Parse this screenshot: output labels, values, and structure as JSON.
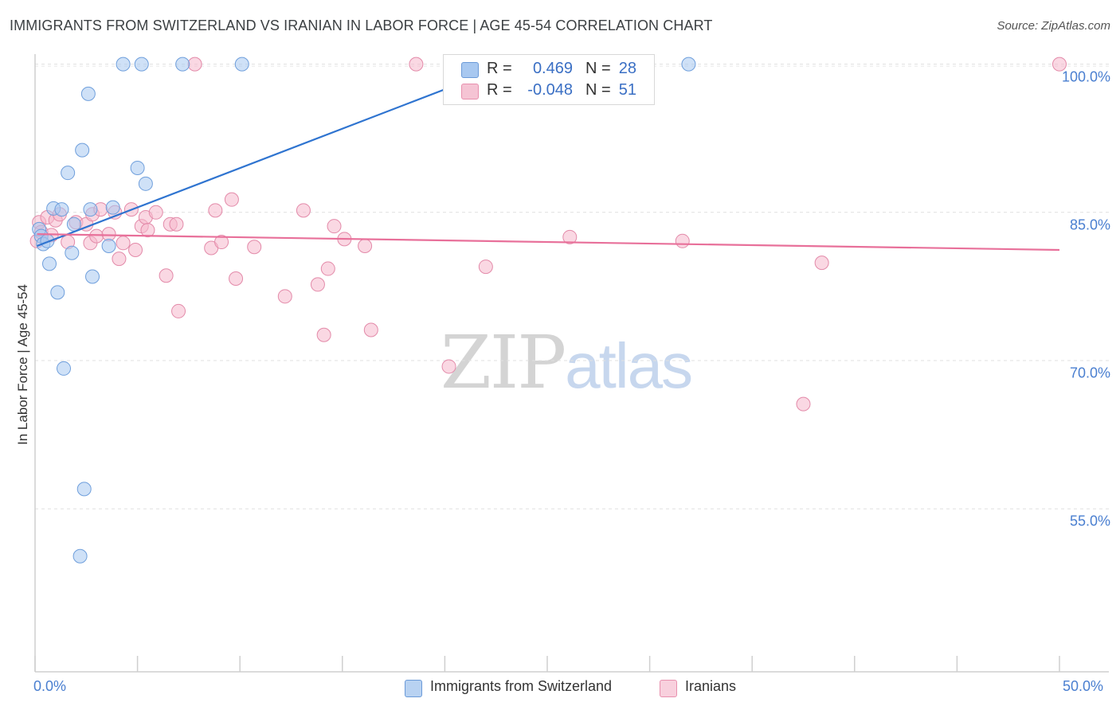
{
  "header": {
    "title": "IMMIGRANTS FROM SWITZERLAND VS IRANIAN IN LABOR FORCE | AGE 45-54 CORRELATION CHART",
    "source": "Source: ZipAtlas.com"
  },
  "legend": {
    "rows": [
      {
        "r_label": "R =",
        "r_value": "0.469",
        "n_label": "N =",
        "n_value": "28",
        "color": "#a8c8f0"
      },
      {
        "r_label": "R =",
        "r_value": "-0.048",
        "n_label": "N =",
        "n_value": "51",
        "color": "#f5b8cc"
      }
    ]
  },
  "watermark": {
    "zip": "ZIP",
    "atlas": "atlas"
  },
  "chart_data": {
    "type": "scatter",
    "title": "IMMIGRANTS FROM SWITZERLAND VS IRANIAN IN LABOR FORCE | AGE 45-54 CORRELATION CHART",
    "xlabel": "",
    "ylabel": "In Labor Force | Age 45-54",
    "xlim": [
      0,
      50
    ],
    "ylim": [
      38.5,
      101.5
    ],
    "x_tick_labels": [
      "0.0%",
      "50.0%"
    ],
    "y_ticks": [
      55,
      70,
      85,
      100
    ],
    "y_tick_labels": [
      "55.0%",
      "70.0%",
      "85.0%",
      "100.0%"
    ],
    "grid": true,
    "legend_position": "top-center",
    "series": [
      {
        "name": "Immigrants from Switzerland",
        "color": "#a8c8f0",
        "line_color": "#2f74d0",
        "trend": {
          "x": [
            0.1,
            23.2
          ],
          "y": [
            81.6,
            100.0
          ]
        },
        "points": [
          [
            0.2,
            83.3
          ],
          [
            0.3,
            82.6
          ],
          [
            0.4,
            81.8
          ],
          [
            0.6,
            82.1
          ],
          [
            0.7,
            79.8
          ],
          [
            0.9,
            85.4
          ],
          [
            1.1,
            76.9
          ],
          [
            1.3,
            85.3
          ],
          [
            1.4,
            69.2
          ],
          [
            1.6,
            89.0
          ],
          [
            1.8,
            80.9
          ],
          [
            1.9,
            83.8
          ],
          [
            2.2,
            50.2
          ],
          [
            2.3,
            91.3
          ],
          [
            2.4,
            57.0
          ],
          [
            2.6,
            97.0
          ],
          [
            2.7,
            85.3
          ],
          [
            2.8,
            78.5
          ],
          [
            3.6,
            81.6
          ],
          [
            3.8,
            85.5
          ],
          [
            4.3,
            100.0
          ],
          [
            5.0,
            89.5
          ],
          [
            5.2,
            100.0
          ],
          [
            5.4,
            87.9
          ],
          [
            7.2,
            100.0
          ],
          [
            10.1,
            100.0
          ],
          [
            24.7,
            100.0
          ],
          [
            31.9,
            100.0
          ]
        ]
      },
      {
        "name": "Iranians",
        "color": "#f5b8cc",
        "line_color": "#e8709a",
        "trend": {
          "x": [
            0.1,
            50.0
          ],
          "y": [
            82.8,
            81.2
          ]
        },
        "points": [
          [
            0.1,
            82.1
          ],
          [
            0.2,
            84.0
          ],
          [
            0.3,
            83.0
          ],
          [
            0.6,
            84.5
          ],
          [
            0.8,
            82.7
          ],
          [
            1.0,
            84.2
          ],
          [
            1.2,
            84.8
          ],
          [
            1.6,
            82.0
          ],
          [
            2.0,
            84.0
          ],
          [
            2.5,
            83.8
          ],
          [
            2.7,
            81.9
          ],
          [
            2.8,
            84.8
          ],
          [
            3.0,
            82.6
          ],
          [
            3.2,
            85.3
          ],
          [
            3.6,
            82.8
          ],
          [
            3.9,
            85.0
          ],
          [
            4.1,
            80.3
          ],
          [
            4.3,
            81.9
          ],
          [
            4.7,
            85.3
          ],
          [
            4.9,
            81.2
          ],
          [
            5.2,
            83.6
          ],
          [
            5.4,
            84.5
          ],
          [
            5.5,
            83.2
          ],
          [
            5.9,
            85.0
          ],
          [
            6.4,
            78.6
          ],
          [
            6.6,
            83.8
          ],
          [
            6.9,
            83.8
          ],
          [
            7.0,
            75.0
          ],
          [
            7.8,
            100.0
          ],
          [
            8.6,
            81.4
          ],
          [
            8.8,
            85.2
          ],
          [
            9.1,
            82.0
          ],
          [
            9.6,
            86.3
          ],
          [
            9.8,
            78.3
          ],
          [
            10.7,
            81.5
          ],
          [
            12.2,
            76.5
          ],
          [
            13.1,
            85.2
          ],
          [
            13.8,
            77.7
          ],
          [
            14.1,
            72.6
          ],
          [
            14.3,
            79.3
          ],
          [
            14.6,
            83.6
          ],
          [
            15.1,
            82.3
          ],
          [
            16.1,
            81.6
          ],
          [
            16.4,
            73.1
          ],
          [
            18.6,
            100.0
          ],
          [
            20.2,
            69.4
          ],
          [
            22.0,
            79.5
          ],
          [
            26.1,
            82.5
          ],
          [
            31.6,
            82.1
          ],
          [
            37.5,
            65.6
          ],
          [
            38.4,
            79.9
          ],
          [
            50.0,
            100.0
          ]
        ]
      }
    ]
  }
}
